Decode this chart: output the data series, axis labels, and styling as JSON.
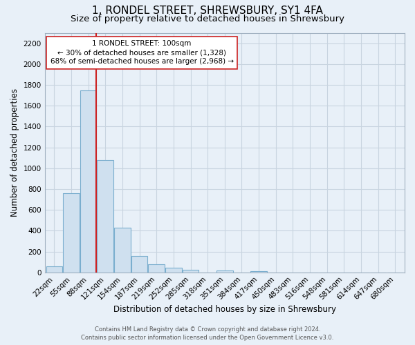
{
  "title": "1, RONDEL STREET, SHREWSBURY, SY1 4FA",
  "subtitle": "Size of property relative to detached houses in Shrewsbury",
  "xlabel": "Distribution of detached houses by size in Shrewsbury",
  "ylabel": "Number of detached properties",
  "bar_labels": [
    "22sqm",
    "55sqm",
    "88sqm",
    "121sqm",
    "154sqm",
    "187sqm",
    "219sqm",
    "252sqm",
    "285sqm",
    "318sqm",
    "351sqm",
    "384sqm",
    "417sqm",
    "450sqm",
    "483sqm",
    "516sqm",
    "548sqm",
    "581sqm",
    "614sqm",
    "647sqm",
    "680sqm"
  ],
  "bar_values": [
    55,
    760,
    1750,
    1075,
    430,
    155,
    80,
    45,
    25,
    0,
    18,
    0,
    13,
    0,
    0,
    0,
    0,
    0,
    0,
    0,
    0
  ],
  "bar_color": "#cfe0ef",
  "bar_edge_color": "#7aaece",
  "red_line_index": 2,
  "annotation_line1": "1 RONDEL STREET: 100sqm",
  "annotation_line2": "← 30% of detached houses are smaller (1,328)",
  "annotation_line3": "68% of semi-detached houses are larger (2,968) →",
  "ylim": [
    0,
    2300
  ],
  "yticks": [
    0,
    200,
    400,
    600,
    800,
    1000,
    1200,
    1400,
    1600,
    1800,
    2000,
    2200
  ],
  "footer_line1": "Contains HM Land Registry data © Crown copyright and database right 2024.",
  "footer_line2": "Contains public sector information licensed under the Open Government Licence v3.0.",
  "bg_color": "#e8f0f8",
  "plot_bg_color": "#e8f0f8",
  "grid_color": "#c8d4e0",
  "title_fontsize": 11,
  "subtitle_fontsize": 9.5,
  "axis_label_fontsize": 8.5,
  "tick_fontsize": 7.5,
  "annotation_fontsize": 7.5,
  "footer_fontsize": 6.0
}
